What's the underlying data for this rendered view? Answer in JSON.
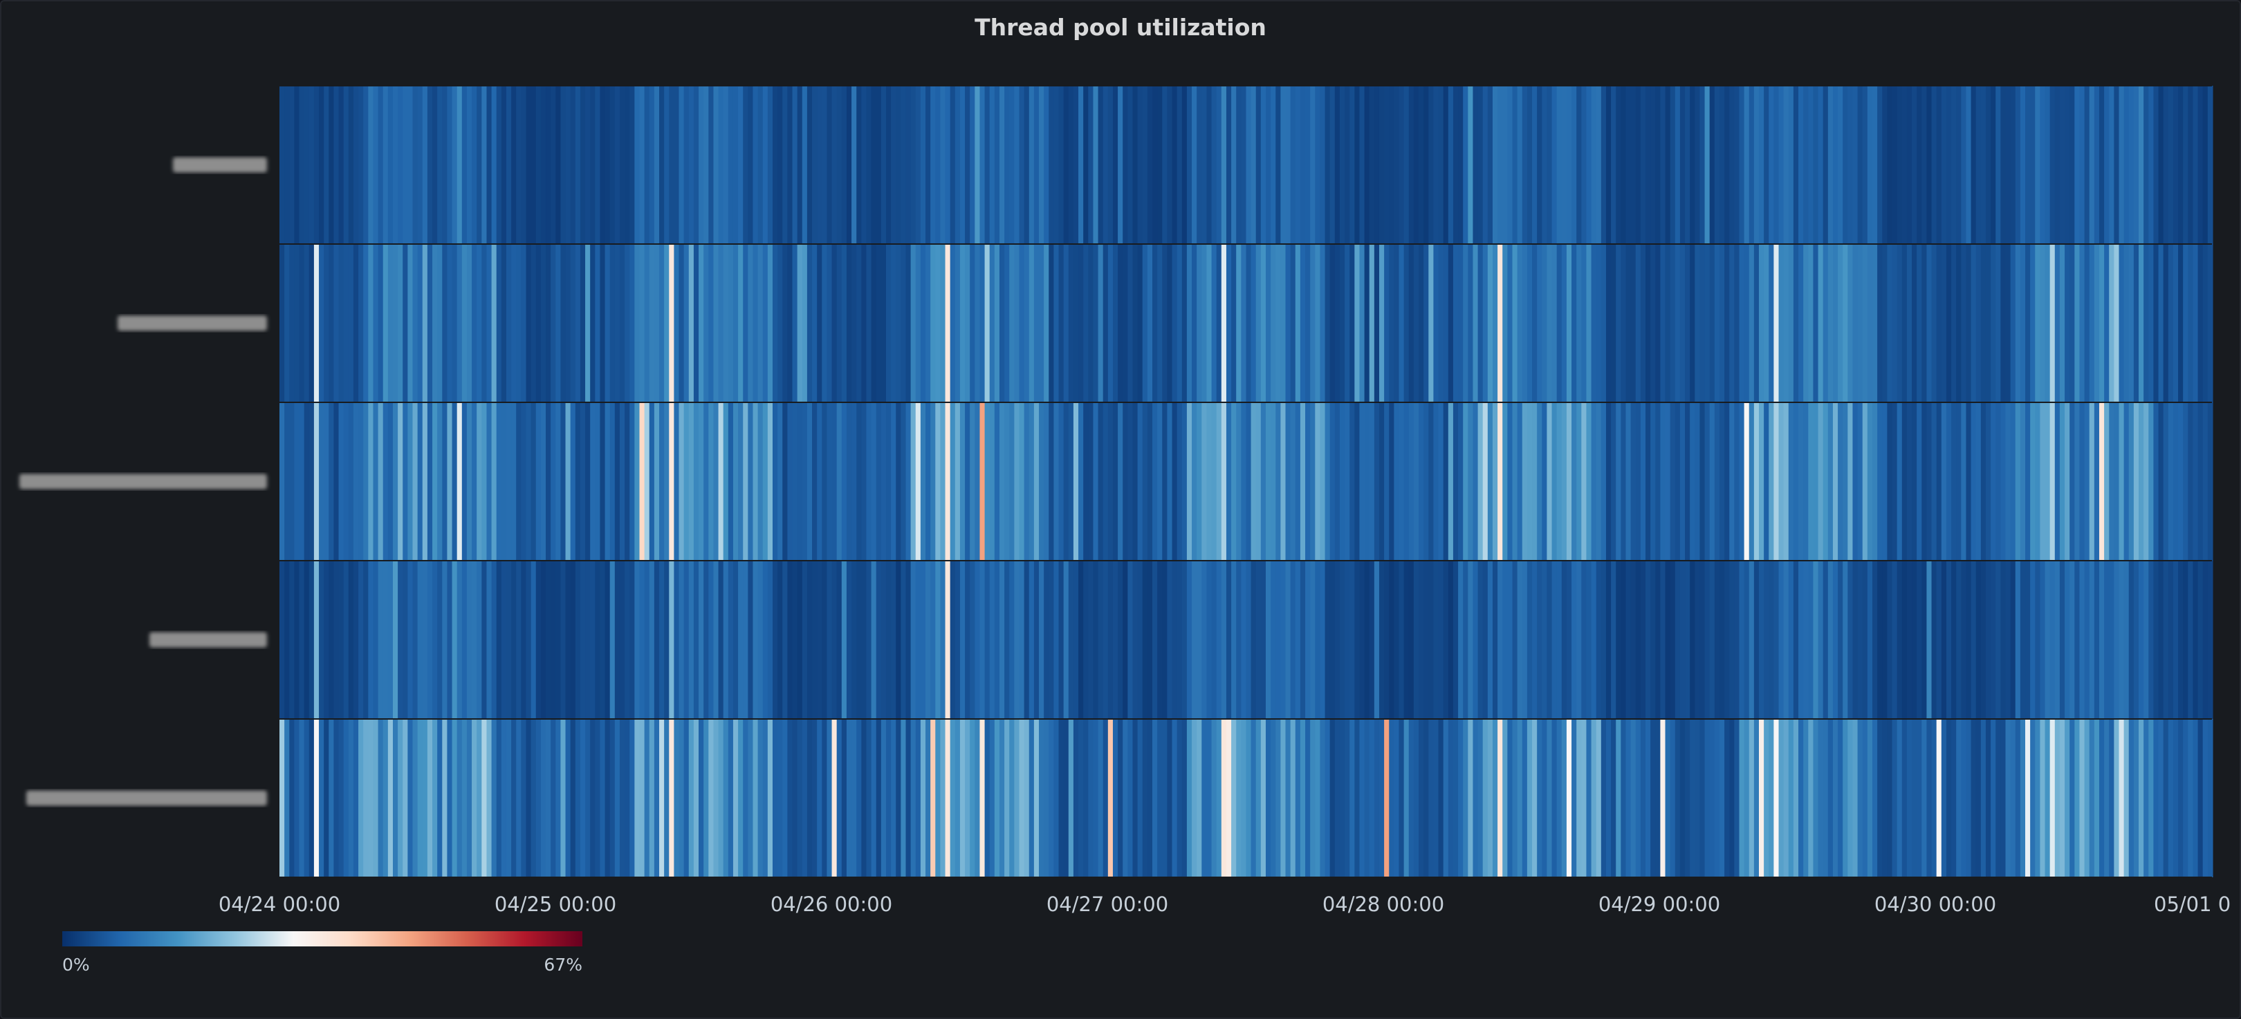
{
  "panel": {
    "title": "Thread pool utilization"
  },
  "chart_data": {
    "type": "heatmap",
    "title": "Thread pool utilization",
    "rows": 5,
    "row_labels_obscured": true,
    "x_ticks": [
      "04/24 00:00",
      "04/25 00:00",
      "04/26 00:00",
      "04/27 00:00",
      "04/28 00:00",
      "04/29 00:00",
      "04/30 00:00",
      "05/01 0"
    ],
    "color_scale": {
      "min_label": "0%",
      "max_label": "67%",
      "min": 0,
      "max": 67,
      "colors": [
        "#08306b",
        "#2166ac",
        "#4393c3",
        "#92c5de",
        "#f7f7f7",
        "#fddbc7",
        "#f4a582",
        "#d6604d",
        "#b2182b",
        "#67001f"
      ]
    },
    "base_levels": [
      4,
      6,
      8,
      4,
      8
    ],
    "spikes": [
      {
        "row": 1,
        "x": "04/24 03:00",
        "value": 28
      },
      {
        "row": 1,
        "x": "04/25 10:00",
        "value": 34
      },
      {
        "row": 1,
        "x": "04/26 10:00",
        "value": 34
      },
      {
        "row": 1,
        "x": "04/27 10:00",
        "value": 28
      },
      {
        "row": 1,
        "x": "04/28 10:00",
        "value": 34
      },
      {
        "row": 1,
        "x": "04/29 10:00",
        "value": 28
      },
      {
        "row": 1,
        "x": "04/30 10:00",
        "value": 24
      },
      {
        "row": 2,
        "x": "04/24 03:00",
        "value": 24
      },
      {
        "row": 2,
        "x": "04/25 10:00",
        "value": 34
      },
      {
        "row": 2,
        "x": "04/26 10:00",
        "value": 34
      },
      {
        "row": 2,
        "x": "04/26 13:00",
        "value": 45
      },
      {
        "row": 2,
        "x": "04/27 10:00",
        "value": 24
      },
      {
        "row": 2,
        "x": "04/28 10:00",
        "value": 34
      },
      {
        "row": 2,
        "x": "04/29 10:00",
        "value": 24
      },
      {
        "row": 2,
        "x": "04/30 10:00",
        "value": 24
      },
      {
        "row": 3,
        "x": "04/24 03:00",
        "value": 20
      },
      {
        "row": 3,
        "x": "04/25 10:00",
        "value": 20
      },
      {
        "row": 3,
        "x": "04/26 10:00",
        "value": 34
      },
      {
        "row": 4,
        "x": "04/24 03:00",
        "value": 30
      },
      {
        "row": 4,
        "x": "04/25 10:00",
        "value": 34
      },
      {
        "row": 4,
        "x": "04/26 00:00",
        "value": 34
      },
      {
        "row": 4,
        "x": "04/26 10:00",
        "value": 34
      },
      {
        "row": 4,
        "x": "04/26 13:00",
        "value": 34
      },
      {
        "row": 4,
        "x": "04/27 00:00",
        "value": 40
      },
      {
        "row": 4,
        "x": "04/27 10:00",
        "value": 34
      },
      {
        "row": 4,
        "x": "04/28 00:00",
        "value": 45
      },
      {
        "row": 4,
        "x": "04/28 10:00",
        "value": 34
      },
      {
        "row": 4,
        "x": "04/29 00:00",
        "value": 32
      },
      {
        "row": 4,
        "x": "04/29 10:00",
        "value": 30
      },
      {
        "row": 4,
        "x": "04/30 00:00",
        "value": 30
      },
      {
        "row": 4,
        "x": "04/30 10:00",
        "value": 28
      }
    ]
  }
}
